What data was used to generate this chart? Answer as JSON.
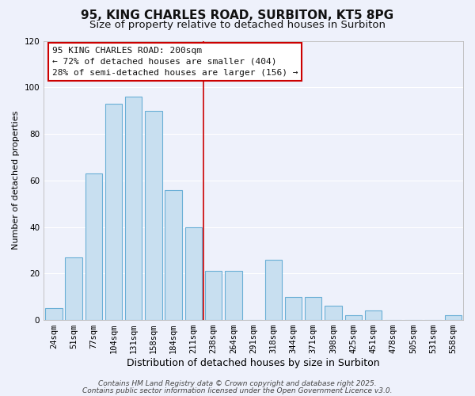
{
  "title": "95, KING CHARLES ROAD, SURBITON, KT5 8PG",
  "subtitle": "Size of property relative to detached houses in Surbiton",
  "xlabel": "Distribution of detached houses by size in Surbiton",
  "ylabel": "Number of detached properties",
  "categories": [
    "24sqm",
    "51sqm",
    "77sqm",
    "104sqm",
    "131sqm",
    "158sqm",
    "184sqm",
    "211sqm",
    "238sqm",
    "264sqm",
    "291sqm",
    "318sqm",
    "344sqm",
    "371sqm",
    "398sqm",
    "425sqm",
    "451sqm",
    "478sqm",
    "505sqm",
    "531sqm",
    "558sqm"
  ],
  "values": [
    5,
    27,
    63,
    93,
    96,
    90,
    56,
    40,
    21,
    21,
    0,
    26,
    10,
    10,
    6,
    2,
    4,
    0,
    0,
    0,
    2
  ],
  "bar_color": "#c8dff0",
  "bar_edge_color": "#6aafd6",
  "vline_x": 7.5,
  "vline_color": "#cc0000",
  "annotation_lines": [
    "95 KING CHARLES ROAD: 200sqm",
    "← 72% of detached houses are smaller (404)",
    "28% of semi-detached houses are larger (156) →"
  ],
  "annotation_box_facecolor": "#ffffff",
  "annotation_border_color": "#cc0000",
  "ylim": [
    0,
    120
  ],
  "yticks": [
    0,
    20,
    40,
    60,
    80,
    100,
    120
  ],
  "footer1": "Contains HM Land Registry data © Crown copyright and database right 2025.",
  "footer2": "Contains public sector information licensed under the Open Government Licence v3.0.",
  "bg_color": "#eef1fb",
  "grid_color": "#ffffff",
  "title_fontsize": 11,
  "subtitle_fontsize": 9.5,
  "xlabel_fontsize": 9,
  "ylabel_fontsize": 8,
  "tick_fontsize": 7.5,
  "annotation_fontsize": 8,
  "footer_fontsize": 6.5
}
